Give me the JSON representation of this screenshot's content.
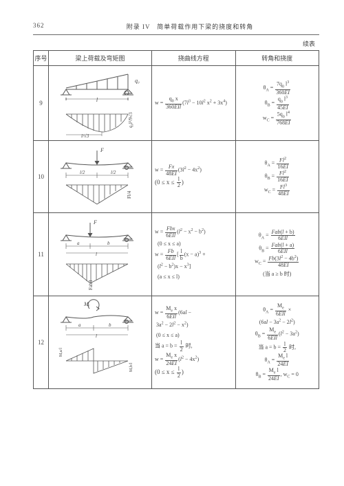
{
  "page": {
    "number": "362",
    "title": "附录 IV　简单荷载作用下梁的挠度和转角",
    "continued": "续表"
  },
  "headers": {
    "col1": "序号",
    "col2": "梁上荷载及弯矩图",
    "col3": "挠曲线方程",
    "col4": "转角和挠度"
  },
  "rows": [
    {
      "num": "9",
      "diagram": {
        "load": "triangular",
        "span_label": "l",
        "moment_peak_at": "l/√3",
        "q_label": "q₀",
        "m_peak": "q₀l²/9√3"
      },
      "eq_html": "w = <span class='frac'><span class='t'>q<sub>0</sub> x</span><span class='b'>360<i>EIl</i></span></span>(7<i>l</i><sup>3</sup> − 10<i>l</i><sup>2</sup> x<sup>2</sup> + 3x<sup>4</sup>)",
      "res_html": "θ<sub>A</sub> = <span class='frac'><span class='t'>7q<sub>0</sub> l<sup>3</sup></span><span class='b'>360<i>EI</i></span></span><br>θ<sub>B</sub> = <span class='frac'><span class='t'>q<sub>0</sub> l<sup>3</sup></span><span class='b'>45<i>EI</i></span></span><br>w<sub>C</sub> = <span class='frac'><span class='t'>5q<sub>0</sub> l<sup>4</sup></span><span class='b'>768<i>EI</i></span></span>"
    },
    {
      "num": "10",
      "diagram": {
        "load": "center_point",
        "F": "F",
        "half": "l/2",
        "m_peak": "Fl/4"
      },
      "eq_html": "w = <span class='frac'><span class='t'><i>Fx</i></span><span class='b'>48<i>EI</i></span></span>(3<i>l</i><sup>2</sup> − 4x<sup>2</sup>)<br><span style='font-size:9px;'>(0 ≤ x ≤ <span class='frac'><span class='t'>l</span><span class='b'>2</span></span>)</span>",
      "res_html": "θ<sub>A</sub> = <span class='frac'><span class='t'><i>Fl</i><sup>2</sup></span><span class='b'>16<i>EI</i></span></span><br>θ<sub>B</sub> = <span class='frac'><span class='t'><i>Fl</i><sup>2</sup></span><span class='b'>16<i>EI</i></span></span><br>w<sub>C</sub> = <span class='frac'><span class='t'><i>Fl</i><sup>3</sup></span><span class='b'>48<i>EI</i></span></span>"
    },
    {
      "num": "11",
      "diagram": {
        "load": "offset_point",
        "F": "F",
        "a": "a",
        "b": "b",
        "span": "l",
        "m_peak": "Fab/l"
      },
      "eq_html": "w = <span class='frac'><span class='t'><i>Fbx</i></span><span class='b'>6<i>EIl</i></span></span>(<i>l</i><sup>2</sup> − x<sup>2</sup> − b<sup>2</sup>)<br>&nbsp;&nbsp;(0 ≤ x ≤ a)<br>w = <span class='frac'><span class='t'><i>Fb</i></span><span class='b'>6<i>EIl</i></span></span>[<span class='frac'><span class='t'>l</span><span class='b'>b</span></span>(x − a)<sup>3</sup> +<br>&nbsp;&nbsp;(<i>l</i><sup>2</sup> − b<sup>2</sup>)x − x<sup>3</sup>]<br>&nbsp;&nbsp;(a ≤ x ≤ l)",
      "res_html": "θ<sub>A</sub> = <span class='frac'><span class='t'><i>Fab</i>(<i>l</i> + b)</span><span class='b'>6<i>EIl</i></span></span><br>θ<sub>B</sub> = <span class='frac'><span class='t'><i>Fab</i>(<i>l</i> + a)</span><span class='b'>6<i>EIl</i></span></span><br>w<sub>C</sub> = <span class='frac'><span class='t'><i>Fb</i>(3<i>l</i><sup>2</sup> − 4b<sup>2</sup>)</span><span class='b'>48<i>EI</i></span></span><br><span class='cjk'>(当 a ≥ b 时)</span>"
    },
    {
      "num": "12",
      "diagram": {
        "load": "interior_moment",
        "M": "Mₑ",
        "a": "a",
        "b": "b",
        "span": "l",
        "peaks": [
          "Mₑa/l",
          "Mₑb/l"
        ]
      },
      "eq_html": "w = <span class='frac'><span class='t'>M<sub>e</sub> x</span><span class='b'>6<i>EIl</i></span></span>(6a<i>l</i> −<br>&nbsp;3a<sup>2</sup> − 2<i>l</i><sup>2</sup> − x<sup>2</sup>)<br>&nbsp;(0 ≤ x ≤ a)<br><span class='cjk'>当 a = b = </span><span class='frac'><span class='t'>l</span><span class='b'>2</span></span><span class='cjk'> 时,</span><br>w = <span class='frac'><span class='t'>M<sub>e</sub> x</span><span class='b'>24<i>EI</i></span></span>(<i>l</i><sup>2</sup> − 4x<sup>2</sup>)<br><span style='font-size:9px;'>(0 ≤ x ≤ <span class='frac'><span class='t'>l</span><span class='b'>2</span></span>)</span>",
      "res_html": "θ<sub>A</sub> = <span class='frac'><span class='t'>M<sub>e</sub></span><span class='b'>6<i>EIl</i></span></span> ×<br>(6a<i>l</i> − 3a<sup>2</sup> − 2<i>l</i><sup>2</sup>)<br>θ<sub>B</sub> = <span class='frac'><span class='t'>M<sub>e</sub></span><span class='b'>6<i>EIl</i></span></span>(<i>l</i><sup>2</sup> − 3a<sup>2</sup>)<br><span class='cjk'>当 a = b = </span><span class='frac'><span class='t'>l</span><span class='b'>2</span></span><span class='cjk'> 时,</span><br>θ<sub>A</sub> = <span class='frac'><span class='t'>M<sub>e</sub> l</span><span class='b'>24<i>EI</i></span></span><br>θ<sub>B</sub> = <span class='frac'><span class='t'>M<sub>e</sub> l</span><span class='b'>24<i>EI</i></span></span>, w<sub>C</sub> = 0"
    }
  ],
  "style": {
    "stroke": "#555",
    "hatch_stroke": "#666",
    "hatch_gap": 3,
    "beam_stroke_w": 1,
    "dim_stroke_w": 0.6,
    "text_color": "#444"
  }
}
